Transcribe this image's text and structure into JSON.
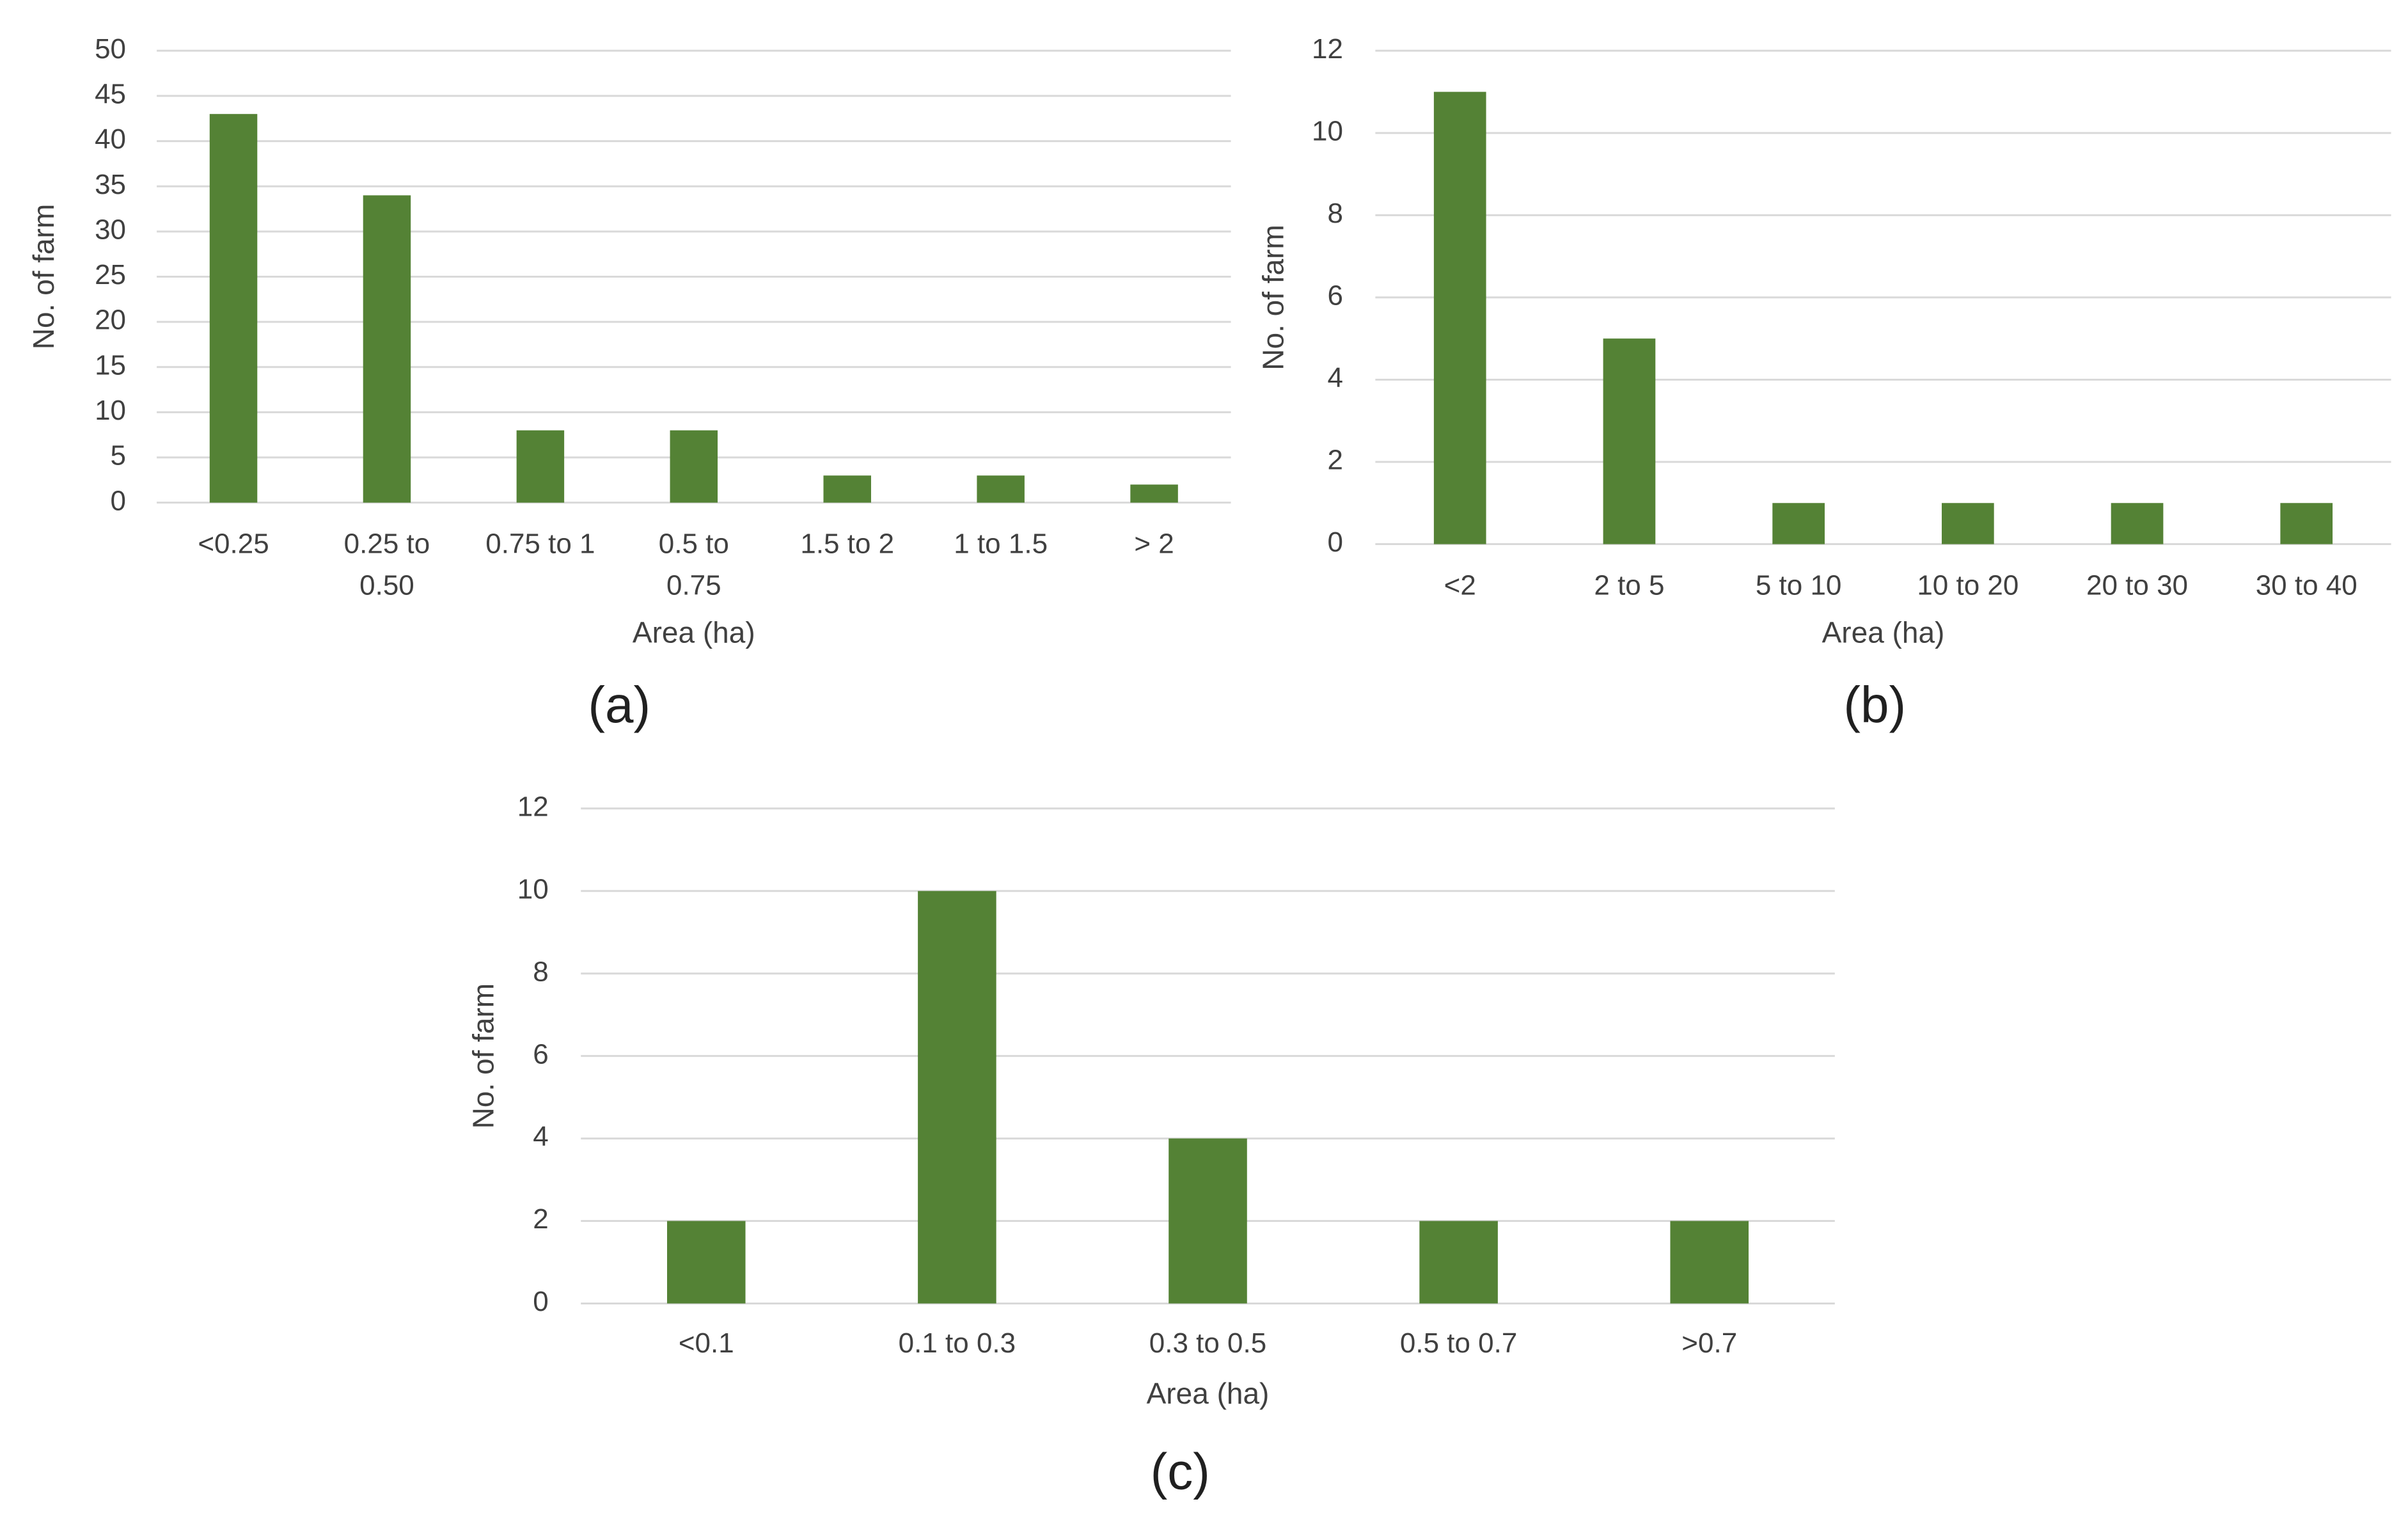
{
  "bar_color": "#548235",
  "grid_color": "#d9d9d9",
  "chart_data": [
    {
      "type": "bar",
      "caption": "(a)",
      "categories": [
        "<0.25",
        "0.25 to 0.50",
        "0.75 to 1",
        "0.5 to 0.75",
        "1.5 to 2",
        "1 to 1.5",
        "> 2"
      ],
      "category_lines": [
        [
          "<0.25"
        ],
        [
          "0.25 to",
          "0.50"
        ],
        [
          "0.75 to 1"
        ],
        [
          "0.5 to",
          "0.75"
        ],
        [
          "1.5 to 2"
        ],
        [
          "1 to 1.5"
        ],
        [
          "> 2"
        ]
      ],
      "values": [
        43,
        34,
        8,
        8,
        3,
        3,
        2
      ],
      "xlabel": "Area (ha)",
      "ylabel": "No. of farm",
      "ylim": [
        0,
        50
      ],
      "yticks": [
        0,
        5,
        10,
        15,
        20,
        25,
        30,
        35,
        40,
        45,
        50
      ],
      "grid": true
    },
    {
      "type": "bar",
      "caption": "(b)",
      "categories": [
        "<2",
        "2 to 5",
        "5 to 10",
        "10 to 20",
        "20 to 30",
        "30 to 40"
      ],
      "category_lines": [
        [
          "<2"
        ],
        [
          "2 to 5"
        ],
        [
          "5 to 10"
        ],
        [
          "10 to 20"
        ],
        [
          "20 to 30"
        ],
        [
          "30 to 40"
        ]
      ],
      "values": [
        11,
        5,
        1,
        1,
        1,
        1
      ],
      "xlabel": "Area (ha)",
      "ylabel": "No. of farm",
      "ylim": [
        0,
        12
      ],
      "yticks": [
        0,
        2,
        4,
        6,
        8,
        10,
        12
      ],
      "grid": true
    },
    {
      "type": "bar",
      "caption": "(c)",
      "categories": [
        "<0.1",
        "0.1 to 0.3",
        "0.3 to 0.5",
        "0.5 to 0.7",
        ">0.7"
      ],
      "category_lines": [
        [
          "<0.1"
        ],
        [
          "0.1 to 0.3"
        ],
        [
          "0.3 to 0.5"
        ],
        [
          "0.5 to 0.7"
        ],
        [
          ">0.7"
        ]
      ],
      "values": [
        2,
        10,
        4,
        2,
        2
      ],
      "xlabel": "Area (ha)",
      "ylabel": "No. of farm",
      "ylim": [
        0,
        12
      ],
      "yticks": [
        0,
        2,
        4,
        6,
        8,
        10,
        12
      ],
      "grid": true
    }
  ]
}
